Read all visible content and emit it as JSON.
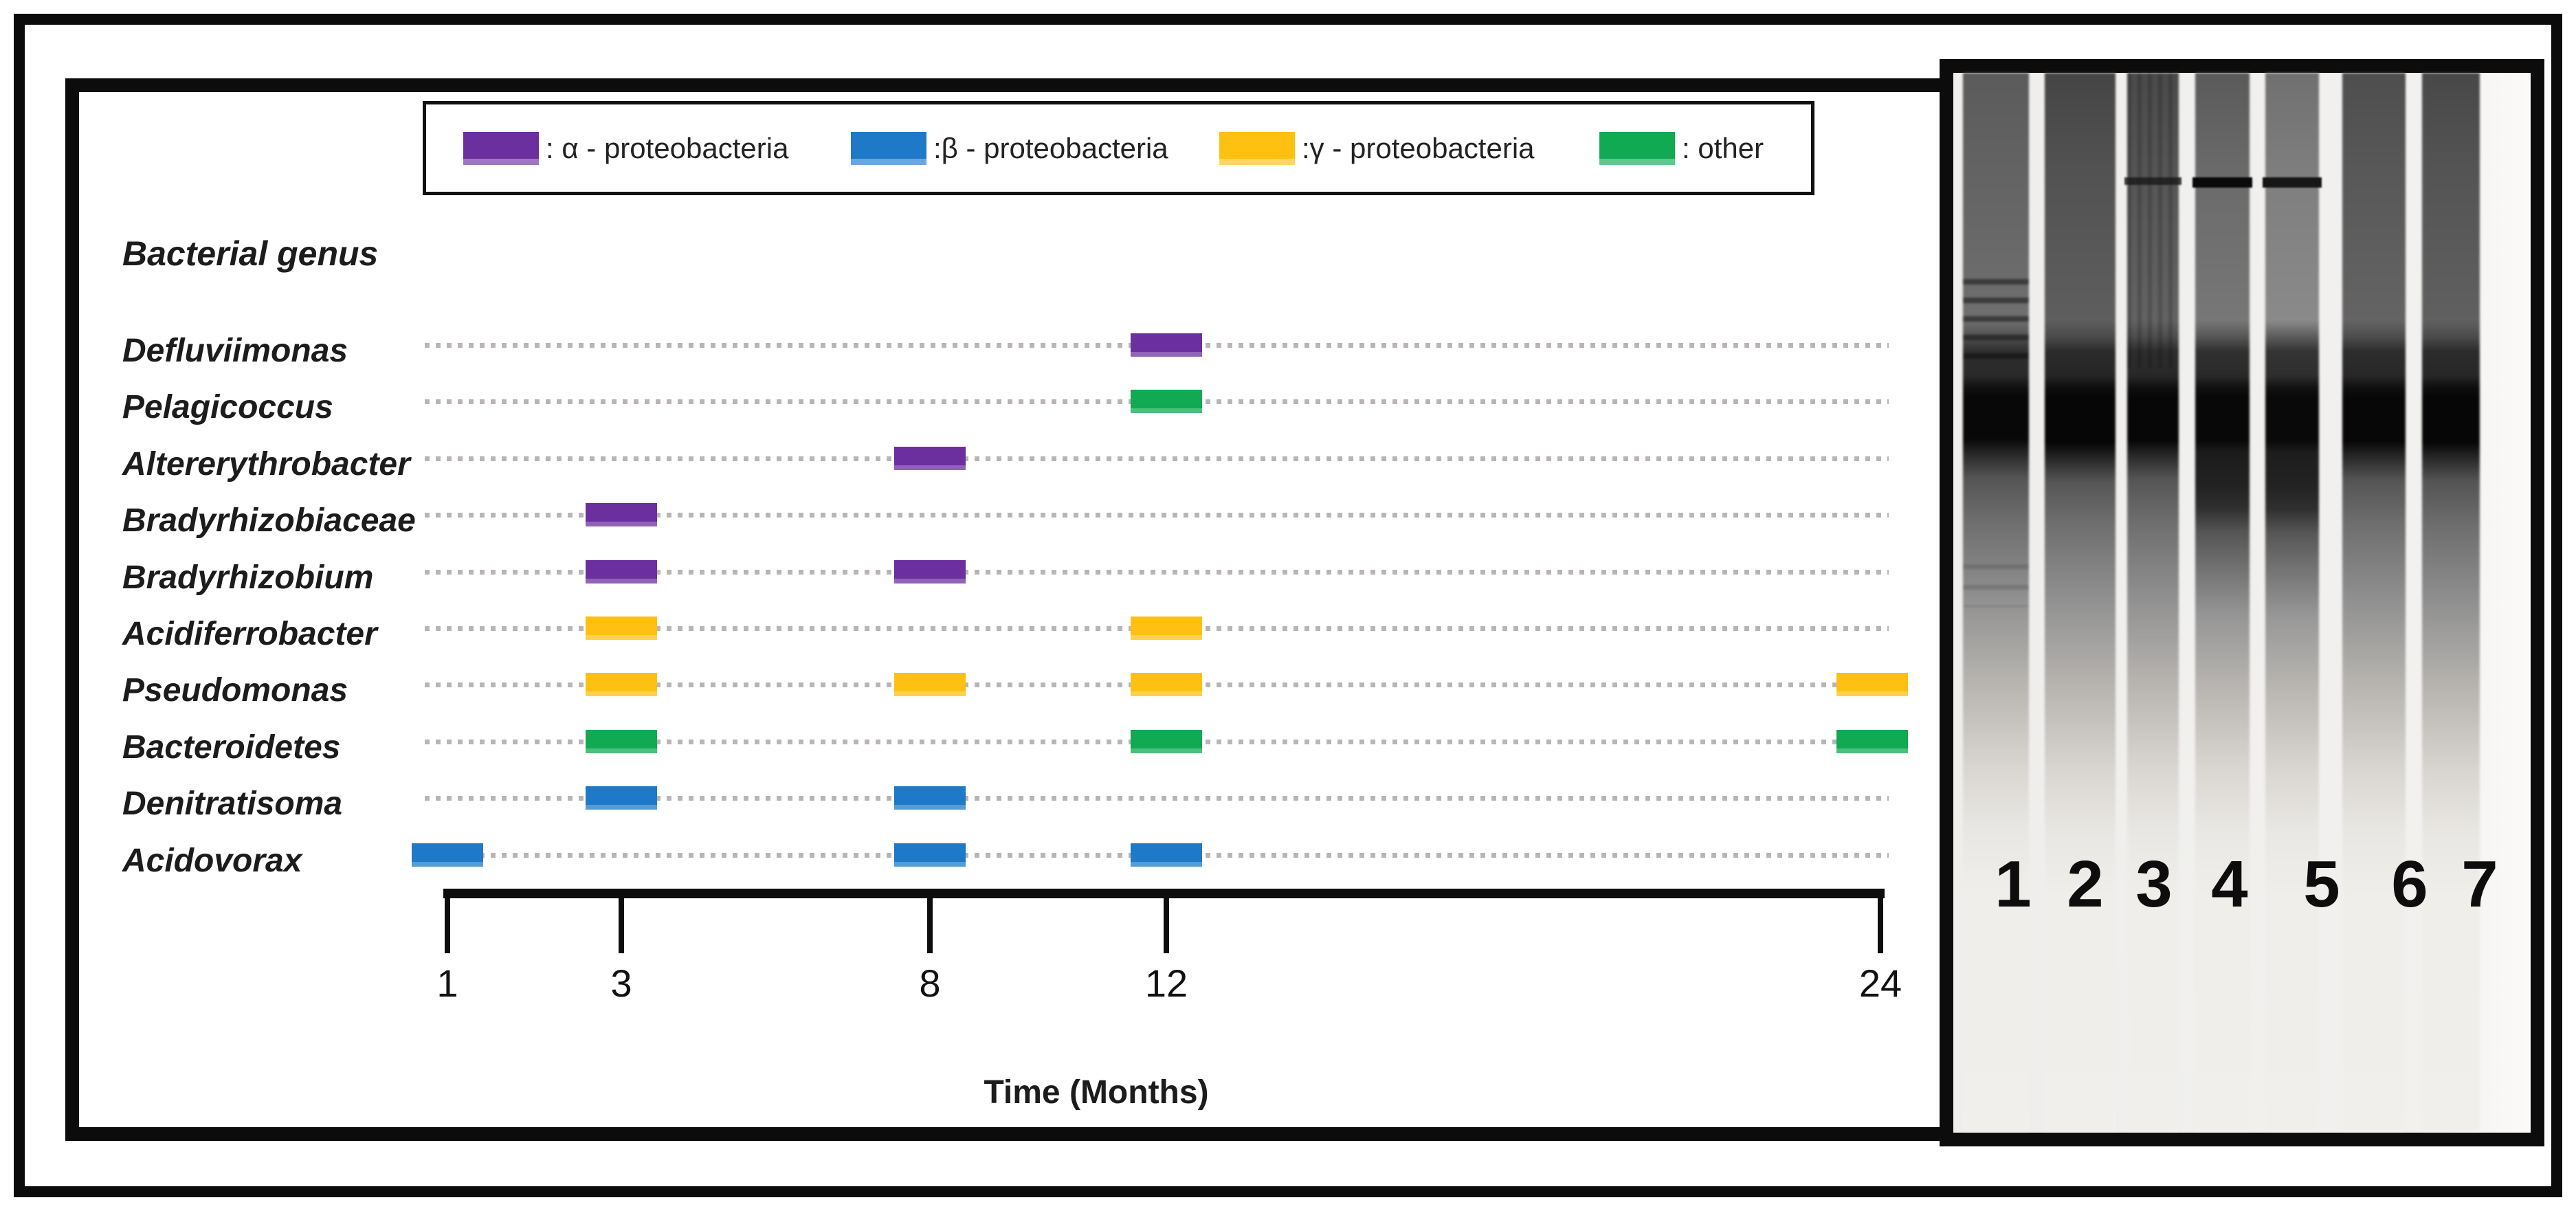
{
  "chart_data": {
    "type": "scatter",
    "title": "",
    "xlabel": "Time (Months)",
    "ylabel": "Bacterial genus",
    "x_ticks": [
      1,
      3,
      8,
      12,
      24
    ],
    "x_axis_style": "bracket with downward end ticks, non-linear month spacing",
    "grid": "dotted gray leader line per genus row",
    "legend_position": "top, boxed",
    "colors": {
      "alpha": "#6C2F9E",
      "beta": "#1E79C8",
      "gamma": "#FEC011",
      "other": "#0FAA52",
      "dots": "#B9B5B5",
      "axis": "#0D0D0D"
    },
    "legend": [
      {
        "label": ": α - proteobacteria",
        "class": "alpha"
      },
      {
        "label": ":β - proteobacteria",
        "class": "beta"
      },
      {
        "label": ":γ - proteobacteria",
        "class": "gamma"
      },
      {
        "label": ": other",
        "class": "other"
      }
    ],
    "rows": [
      {
        "genus": "Defluviimonas",
        "class": "alpha",
        "months": [
          12
        ]
      },
      {
        "genus": "Pelagicoccus",
        "class": "other",
        "months": [
          12
        ]
      },
      {
        "genus": "Altererythrobacter",
        "class": "alpha",
        "months": [
          8
        ]
      },
      {
        "genus": "Bradyrhizobiaceae",
        "class": "alpha",
        "months": [
          3
        ]
      },
      {
        "genus": "Bradyrhizobium",
        "class": "alpha",
        "months": [
          3,
          8
        ]
      },
      {
        "genus": "Acidiferrobacter",
        "class": "gamma",
        "months": [
          3,
          12
        ]
      },
      {
        "genus": "Pseudomonas",
        "class": "gamma",
        "months": [
          3,
          8,
          12,
          24
        ]
      },
      {
        "genus": "Bacteroidetes",
        "class": "other",
        "months": [
          3,
          12,
          24
        ]
      },
      {
        "genus": "Denitratisoma",
        "class": "beta",
        "months": [
          3,
          8
        ]
      },
      {
        "genus": "Acidovorax",
        "class": "beta",
        "months": [
          1,
          8,
          12
        ]
      }
    ]
  },
  "gel": {
    "description_visible_text_only": "",
    "lanes": [
      {
        "number": "1",
        "sharp_band": false
      },
      {
        "number": "2",
        "sharp_band": false
      },
      {
        "number": "3",
        "sharp_band": true
      },
      {
        "number": "4",
        "sharp_band": true
      },
      {
        "number": "5",
        "sharp_band": true
      },
      {
        "number": "6",
        "sharp_band": false
      },
      {
        "number": "7",
        "sharp_band": false
      }
    ]
  }
}
